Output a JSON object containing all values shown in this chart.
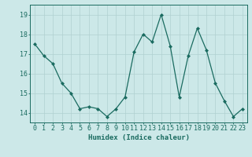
{
  "x": [
    0,
    1,
    2,
    3,
    4,
    5,
    6,
    7,
    8,
    9,
    10,
    11,
    12,
    13,
    14,
    15,
    16,
    17,
    18,
    19,
    20,
    21,
    22,
    23
  ],
  "y": [
    17.5,
    16.9,
    16.5,
    15.5,
    15.0,
    14.2,
    14.3,
    14.2,
    13.8,
    14.2,
    14.8,
    17.1,
    18.0,
    17.6,
    19.0,
    17.4,
    14.8,
    16.9,
    18.3,
    17.2,
    15.5,
    14.6,
    13.8,
    14.2
  ],
  "line_color": "#1a6b60",
  "marker": "D",
  "marker_size": 2.0,
  "line_width": 0.9,
  "bg_color": "#cce8e8",
  "grid_color": "#b0d0d0",
  "xlabel": "Humidex (Indice chaleur)",
  "ylim": [
    13.5,
    19.5
  ],
  "yticks": [
    14,
    15,
    16,
    17,
    18,
    19
  ],
  "xticks": [
    0,
    1,
    2,
    3,
    4,
    5,
    6,
    7,
    8,
    9,
    10,
    11,
    12,
    13,
    14,
    15,
    16,
    17,
    18,
    19,
    20,
    21,
    22,
    23
  ],
  "xlabel_fontsize": 6.5,
  "tick_fontsize": 6,
  "tick_color": "#1a6b60",
  "axis_color": "#1a6b60"
}
